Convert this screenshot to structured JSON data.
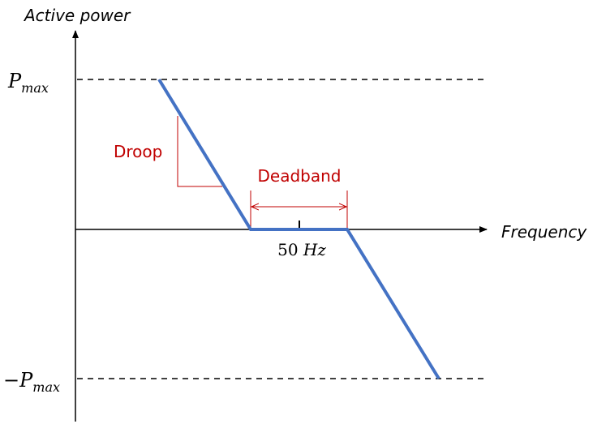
{
  "axes": {
    "y_label": "Active power",
    "x_label": "Frequency"
  },
  "levels": {
    "upper": {
      "base": "P",
      "sub": "max"
    },
    "lower": {
      "base": "−P",
      "sub": "max"
    }
  },
  "annotations": {
    "droop": "Droop",
    "deadband": "Deadband",
    "nominal": {
      "number": "50",
      "unit": "Hz"
    }
  }
}
